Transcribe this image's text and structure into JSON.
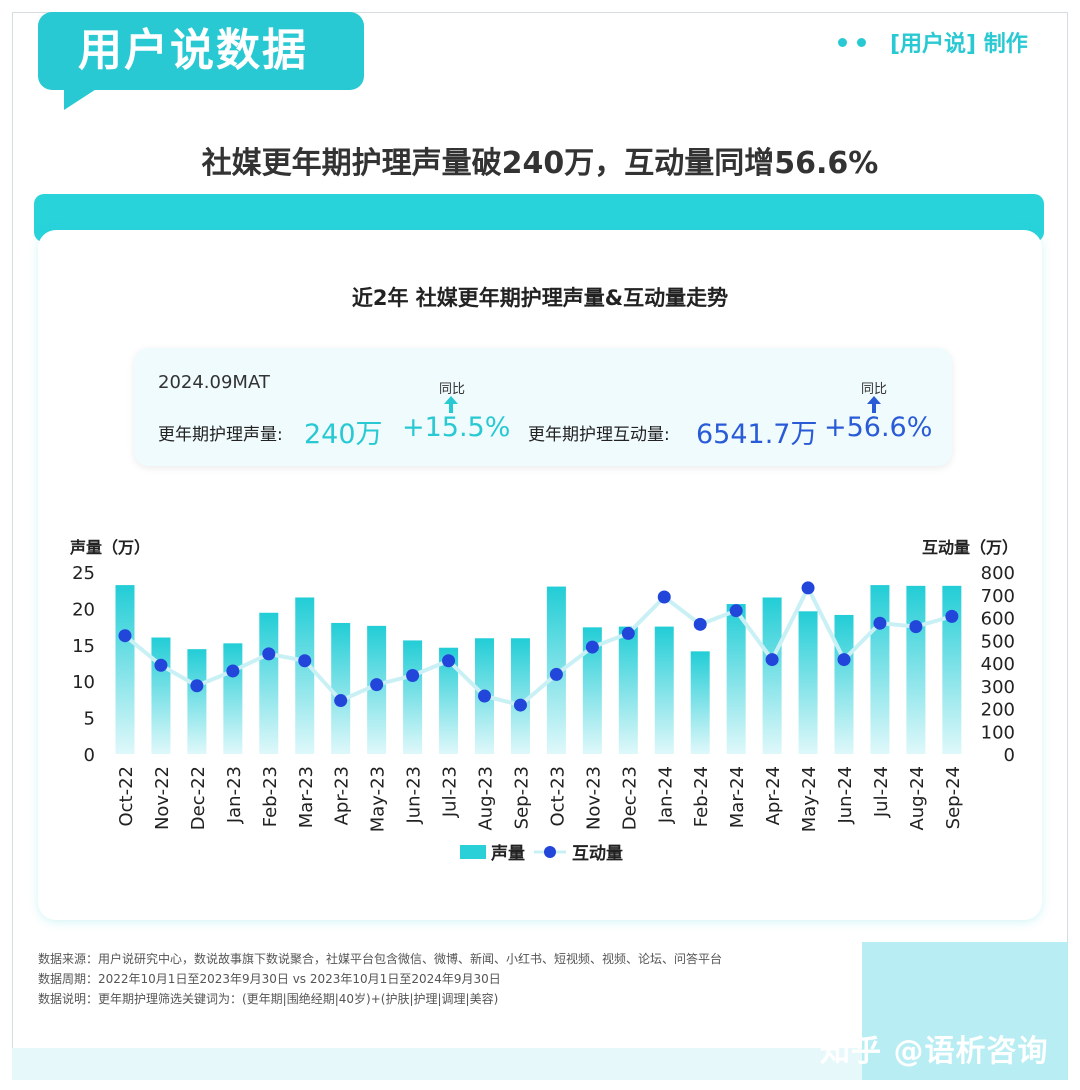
{
  "brand": {
    "badge": "用户说数据",
    "maker": "[用户说] 制作"
  },
  "headline": "社媒更年期护理声量破240万，互动量同增56.6%",
  "chart_title": "近2年 社媒更年期护理声量&互动量走势",
  "kpi": {
    "period": "2024.09MAT",
    "volume_label": "更年期护理声量:",
    "volume_value": "240万",
    "volume_yoy_label": "同比",
    "volume_yoy": "+15.5%",
    "interaction_label": "更年期护理互动量:",
    "interaction_value": "6541.7万",
    "interaction_yoy_label": "同比",
    "interaction_yoy": "+56.6%"
  },
  "colors": {
    "accent": "#28c9d3",
    "bar": "#2ad0d8",
    "line": "#c9f1f5",
    "dot": "#2246d9",
    "kpi_blue": "#2a5bd7"
  },
  "chart_data": {
    "type": "bar",
    "categories": [
      "Oct-22",
      "Nov-22",
      "Dec-22",
      "Jan-23",
      "Feb-23",
      "Mar-23",
      "Apr-23",
      "May-23",
      "Jun-23",
      "Jul-23",
      "Aug-23",
      "Sep-23",
      "Oct-23",
      "Nov-23",
      "Dec-23",
      "Jan-24",
      "Feb-24",
      "Mar-24",
      "Apr-24",
      "May-24",
      "Jun-24",
      "Jul-24",
      "Aug-24",
      "Sep-24"
    ],
    "series": [
      {
        "name": "声量",
        "type": "bar",
        "axis": "left",
        "values": [
          23.2,
          16,
          14.4,
          15.2,
          19.4,
          21.5,
          18,
          17.6,
          15.6,
          14.6,
          15.9,
          15.9,
          23,
          17.4,
          17.5,
          17.5,
          14.1,
          20.6,
          21.5,
          19.6,
          19.1,
          23.2,
          23.1,
          23.1
        ]
      },
      {
        "name": "互动量",
        "type": "line",
        "axis": "right",
        "values": [
          520,
          390,
          300,
          365,
          440,
          410,
          235,
          305,
          345,
          410,
          255,
          215,
          350,
          470,
          530,
          690,
          570,
          630,
          415,
          730,
          415,
          575,
          560,
          605
        ]
      }
    ],
    "ylabel_left": "声量（万）",
    "ylabel_right": "互动量（万）",
    "ylim_left": [
      0,
      25
    ],
    "ylim_right": [
      0,
      800
    ],
    "yticks_left": [
      0,
      5,
      10,
      15,
      20,
      25
    ],
    "yticks_right": [
      0,
      100,
      200,
      300,
      400,
      500,
      600,
      700,
      800
    ],
    "legend": [
      "声量",
      "互动量"
    ],
    "legend_position": "bottom",
    "grid": false
  },
  "footnotes": [
    "数据来源：用户说研究中心，数说故事旗下数说聚合，社媒平台包含微信、微博、新闻、小红书、短视频、视频、论坛、问答平台",
    "数据周期：2022年10月1日至2023年9月30日 vs 2023年10月1日至2024年9月30日",
    "数据说明：更年期护理筛选关键词为：(更年期|围绝经期|40岁)+(护肤|护理|调理|美容)"
  ],
  "watermark": "知乎 @语析咨询"
}
